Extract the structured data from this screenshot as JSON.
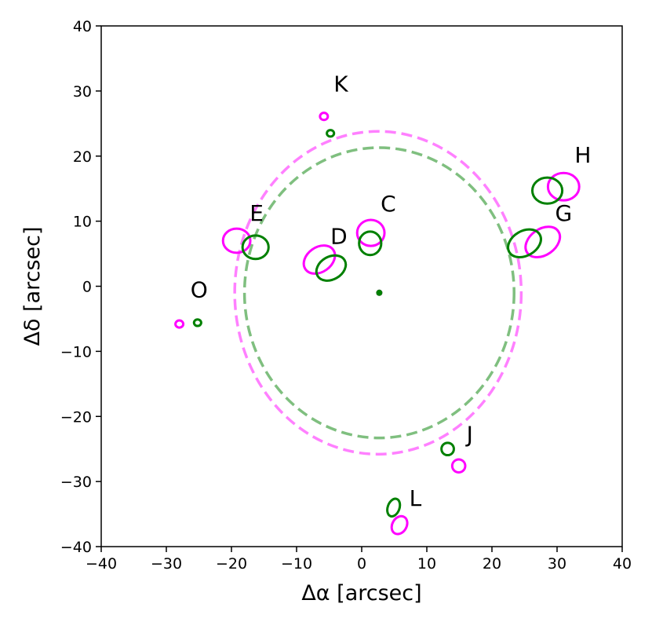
{
  "chart_data": {
    "type": "scatter",
    "title": "",
    "xlabel": "Δα [arcsec]",
    "ylabel": "Δδ [arcsec]",
    "xlim": [
      -40,
      40
    ],
    "ylim": [
      -40,
      40
    ],
    "x_ticks": [
      -40,
      -30,
      -20,
      -10,
      0,
      10,
      20,
      30,
      40
    ],
    "y_ticks": [
      -40,
      -30,
      -20,
      -10,
      0,
      10,
      20,
      30,
      40
    ],
    "grid": false,
    "colors": {
      "magenta": "#ff00ff",
      "green": "#008000",
      "magenta_circle": "#ff80ff",
      "green_circle": "#7fbf7f"
    },
    "circles": [
      {
        "series": "magenta",
        "x": 2.5,
        "y": -1.0,
        "rx": 22.0,
        "ry": 24.8
      },
      {
        "series": "green",
        "x": 2.7,
        "y": -1.0,
        "rx": 20.7,
        "ry": 22.3
      }
    ],
    "centers": [
      {
        "series": "magenta",
        "x": 2.7,
        "y": -1.0
      },
      {
        "series": "green",
        "x": 2.7,
        "y": -1.0
      }
    ],
    "ellipses": [
      {
        "series": "magenta",
        "x": -19.2,
        "y": 7.0,
        "rx": 2.1,
        "ry": 1.85,
        "angle": 0
      },
      {
        "series": "green",
        "x": -16.3,
        "y": 6.0,
        "rx": 2.0,
        "ry": 1.8,
        "angle": 0
      },
      {
        "series": "magenta",
        "x": 1.4,
        "y": 8.2,
        "rx": 2.1,
        "ry": 2.0,
        "angle": 0
      },
      {
        "series": "green",
        "x": 1.3,
        "y": 6.6,
        "rx": 1.7,
        "ry": 1.8,
        "angle": 0
      },
      {
        "series": "magenta",
        "x": -6.5,
        "y": 4.1,
        "rx": 2.6,
        "ry": 1.9,
        "angle": -35
      },
      {
        "series": "green",
        "x": -4.7,
        "y": 2.8,
        "rx": 2.4,
        "ry": 1.75,
        "angle": -30
      },
      {
        "series": "magenta",
        "x": 27.8,
        "y": 6.8,
        "rx": 2.9,
        "ry": 2.0,
        "angle": -35
      },
      {
        "series": "green",
        "x": 25.0,
        "y": 6.6,
        "rx": 2.7,
        "ry": 1.9,
        "angle": -30
      },
      {
        "series": "magenta",
        "x": 31.0,
        "y": 15.3,
        "rx": 2.4,
        "ry": 2.1,
        "angle": 0
      },
      {
        "series": "green",
        "x": 28.5,
        "y": 14.7,
        "rx": 2.3,
        "ry": 2.0,
        "angle": 0
      },
      {
        "series": "magenta",
        "x": -5.8,
        "y": 26.1,
        "rx": 0.6,
        "ry": 0.55,
        "angle": 0
      },
      {
        "series": "green",
        "x": -4.8,
        "y": 23.5,
        "rx": 0.55,
        "ry": 0.5,
        "angle": 0
      },
      {
        "series": "magenta",
        "x": -28.0,
        "y": -5.8,
        "rx": 0.6,
        "ry": 0.55,
        "angle": 0
      },
      {
        "series": "green",
        "x": -25.2,
        "y": -5.6,
        "rx": 0.55,
        "ry": 0.5,
        "angle": 0
      },
      {
        "series": "magenta",
        "x": 14.9,
        "y": -27.6,
        "rx": 1.0,
        "ry": 1.0,
        "angle": 0
      },
      {
        "series": "green",
        "x": 13.2,
        "y": -25.0,
        "rx": 0.95,
        "ry": 0.95,
        "angle": 0
      },
      {
        "series": "magenta",
        "x": 5.8,
        "y": -36.7,
        "rx": 1.1,
        "ry": 1.45,
        "angle": 30
      },
      {
        "series": "green",
        "x": 4.9,
        "y": -34.0,
        "rx": 0.9,
        "ry": 1.4,
        "angle": 20
      }
    ],
    "annotations": [
      {
        "text": "K",
        "x": -4.3,
        "y": 29.9
      },
      {
        "text": "H",
        "x": 32.7,
        "y": 19.0
      },
      {
        "text": "C",
        "x": 2.9,
        "y": 11.5
      },
      {
        "text": "E",
        "x": -17.2,
        "y": 10.1
      },
      {
        "text": "G",
        "x": 29.7,
        "y": 10.1
      },
      {
        "text": "D",
        "x": -4.8,
        "y": 6.5
      },
      {
        "text": "O",
        "x": -26.3,
        "y": -1.7
      },
      {
        "text": "J",
        "x": 16.1,
        "y": -23.9
      },
      {
        "text": "L",
        "x": 7.3,
        "y": -33.7
      }
    ]
  }
}
